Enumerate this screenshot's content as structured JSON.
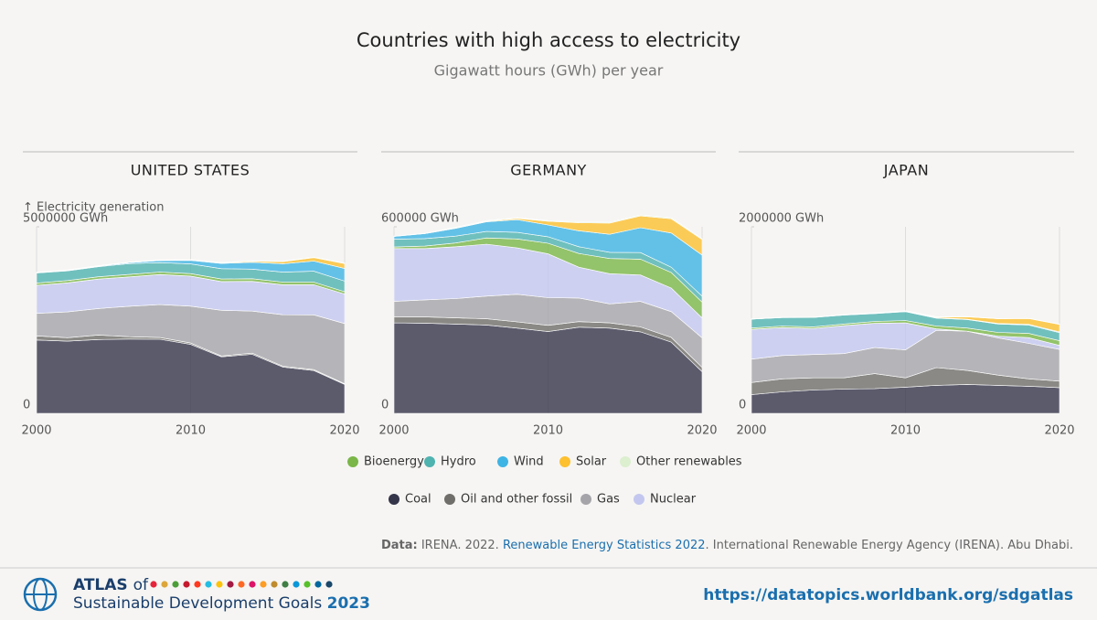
{
  "title": "Countries with high access to electricity",
  "subtitle": "Gigawatt hours (GWh) per year",
  "source": {
    "lead": "Data:",
    "pre": "IRENA. 2022.",
    "link": "Renewable Energy Statistics 2022",
    "post": ". International Renewable Energy Agency (IRENA). Abu Dhabi."
  },
  "footer": {
    "atlas": "ATLAS",
    "of": "of",
    "name": "Sustainable Development Goals",
    "year": "2023",
    "url": "https://datatopics.worldbank.org/sdgatlas"
  },
  "chart_data": [
    {
      "type": "area",
      "title": "UNITED STATES",
      "y_label": "↑ Electricity generation",
      "x": [
        2000,
        2002,
        2004,
        2006,
        2008,
        2010,
        2012,
        2014,
        2016,
        2018,
        2020
      ],
      "xlim": [
        2000,
        2020
      ],
      "xticks": [
        2000,
        2010,
        2020
      ],
      "ylim": [
        0,
        5000000
      ],
      "yticks": [
        0,
        {
          "value": 5000000,
          "label": "5000000 GWh"
        }
      ],
      "grid": true,
      "series": [
        {
          "name": "Coal",
          "color": "#34344a",
          "values": [
            1966000,
            1933000,
            1978000,
            1991000,
            1986000,
            1847000,
            1514000,
            1582000,
            1239000,
            1146000,
            774000
          ]
        },
        {
          "name": "Oil and other fossil",
          "color": "#6f6e6a",
          "values": [
            111000,
            94000,
            121000,
            64000,
            46000,
            37000,
            23000,
            30000,
            24000,
            25000,
            17000
          ]
        },
        {
          "name": "Gas",
          "color": "#a5a4a9",
          "values": [
            601000,
            691000,
            710000,
            816000,
            883000,
            988000,
            1226000,
            1127000,
            1379000,
            1469000,
            1617000
          ]
        },
        {
          "name": "Nuclear",
          "color": "#c3c7ef",
          "values": [
            754000,
            780000,
            789000,
            787000,
            806000,
            807000,
            769000,
            797000,
            805000,
            807000,
            790000
          ]
        },
        {
          "name": "Bioenergy",
          "color": "#7ab648",
          "values": [
            60000,
            60000,
            62000,
            64000,
            65000,
            66000,
            69000,
            71000,
            70000,
            69000,
            62000
          ]
        },
        {
          "name": "Hydro",
          "color": "#4fb3b0",
          "values": [
            270000,
            260000,
            270000,
            290000,
            254000,
            260000,
            276000,
            259000,
            267000,
            292000,
            285000
          ]
        },
        {
          "name": "Wind",
          "color": "#3eb4e4",
          "values": [
            6000,
            10000,
            14000,
            27000,
            55000,
            95000,
            141000,
            182000,
            227000,
            273000,
            338000
          ]
        },
        {
          "name": "Solar",
          "color": "#fdc02f",
          "values": [
            1000,
            1000,
            1000,
            1000,
            2000,
            4000,
            12000,
            29000,
            55000,
            93000,
            132000
          ]
        },
        {
          "name": "Other renewables",
          "color": "#dcefcf",
          "values": [
            14000,
            15000,
            15000,
            15000,
            15000,
            15000,
            16000,
            16000,
            16000,
            16000,
            16000
          ]
        }
      ]
    },
    {
      "type": "area",
      "title": "GERMANY",
      "x": [
        2000,
        2002,
        2004,
        2006,
        2008,
        2010,
        2012,
        2014,
        2016,
        2018,
        2020
      ],
      "xlim": [
        2000,
        2020
      ],
      "xticks": [
        2000,
        2010,
        2020
      ],
      "ylim": [
        0,
        600000
      ],
      "yticks": [
        0,
        {
          "value": 600000,
          "label": "600000 GWh"
        }
      ],
      "grid": true,
      "series": [
        {
          "name": "Coal",
          "color": "#34344a",
          "values": [
            291000,
            290000,
            287000,
            284000,
            274000,
            263000,
            277000,
            274000,
            262000,
            229000,
            134000
          ]
        },
        {
          "name": "Oil and other fossil",
          "color": "#6f6e6a",
          "values": [
            20000,
            20000,
            20000,
            20000,
            20000,
            20000,
            18000,
            17000,
            16000,
            15000,
            14000
          ]
        },
        {
          "name": "Gas",
          "color": "#a5a4a9",
          "values": [
            49000,
            55000,
            62000,
            73000,
            89000,
            89000,
            76000,
            61000,
            82000,
            83000,
            95000
          ]
        },
        {
          "name": "Nuclear",
          "color": "#c3c7ef",
          "values": [
            170000,
            165000,
            167000,
            167000,
            149000,
            141000,
            99000,
            97000,
            85000,
            76000,
            64000
          ]
        },
        {
          "name": "Bioenergy",
          "color": "#7ab648",
          "values": [
            5000,
            8000,
            12000,
            20000,
            29000,
            34000,
            44000,
            49000,
            51000,
            50000,
            51000
          ]
        },
        {
          "name": "Hydro",
          "color": "#4fb3b0",
          "values": [
            25000,
            24000,
            22000,
            21000,
            21000,
            21000,
            22000,
            20000,
            21000,
            17000,
            19000
          ]
        },
        {
          "name": "Wind",
          "color": "#3eb4e4",
          "values": [
            9000,
            16000,
            25000,
            31000,
            41000,
            38000,
            51000,
            58000,
            80000,
            110000,
            132000
          ]
        },
        {
          "name": "Solar",
          "color": "#fdc02f",
          "values": [
            0,
            0,
            1000,
            2000,
            4000,
            12000,
            26000,
            36000,
            38000,
            46000,
            50000
          ]
        },
        {
          "name": "Other renewables",
          "color": "#dcefcf",
          "values": [
            1000,
            1000,
            2000,
            2000,
            2000,
            2000,
            3000,
            3000,
            3000,
            3000,
            3000
          ]
        }
      ]
    },
    {
      "type": "area",
      "title": "JAPAN",
      "x": [
        2000,
        2002,
        2004,
        2006,
        2008,
        2010,
        2012,
        2014,
        2016,
        2018,
        2020
      ],
      "xlim": [
        2000,
        2020
      ],
      "xticks": [
        2000,
        2010,
        2020
      ],
      "ylim": [
        0,
        2000000
      ],
      "yticks": [
        0,
        {
          "value": 2000000,
          "label": "2000000 GWh"
        }
      ],
      "grid": true,
      "series": [
        {
          "name": "Coal",
          "color": "#34344a",
          "values": [
            200000,
            230000,
            250000,
            260000,
            265000,
            280000,
            300000,
            310000,
            300000,
            290000,
            275000
          ]
        },
        {
          "name": "Oil and other fossil",
          "color": "#6f6e6a",
          "values": [
            130000,
            140000,
            130000,
            120000,
            160000,
            100000,
            190000,
            150000,
            110000,
            80000,
            70000
          ]
        },
        {
          "name": "Gas",
          "color": "#a5a4a9",
          "values": [
            250000,
            250000,
            250000,
            260000,
            280000,
            300000,
            400000,
            420000,
            400000,
            380000,
            340000
          ]
        },
        {
          "name": "Nuclear",
          "color": "#c3c7ef",
          "values": [
            320000,
            300000,
            280000,
            300000,
            260000,
            290000,
            16000,
            0,
            18000,
            62000,
            43000
          ]
        },
        {
          "name": "Bioenergy",
          "color": "#7ab648",
          "values": [
            15000,
            16000,
            17000,
            18000,
            20000,
            25000,
            30000,
            35000,
            40000,
            45000,
            50000
          ]
        },
        {
          "name": "Hydro",
          "color": "#4fb3b0",
          "values": [
            95000,
            90000,
            100000,
            95000,
            84000,
            95000,
            85000,
            90000,
            90000,
            90000,
            87000
          ]
        },
        {
          "name": "Wind",
          "color": "#3eb4e4",
          "values": [
            0,
            1000,
            1000,
            2000,
            3000,
            4000,
            5000,
            5000,
            6000,
            7000,
            9000
          ]
        },
        {
          "name": "Solar",
          "color": "#fdc02f",
          "values": [
            0,
            1000,
            1000,
            2000,
            2000,
            3000,
            7000,
            25000,
            50000,
            63000,
            79000
          ]
        },
        {
          "name": "Other renewables",
          "color": "#dcefcf",
          "values": [
            3000,
            3000,
            3000,
            3000,
            3000,
            3000,
            3000,
            3000,
            3000,
            3000,
            3000
          ]
        }
      ]
    }
  ]
}
